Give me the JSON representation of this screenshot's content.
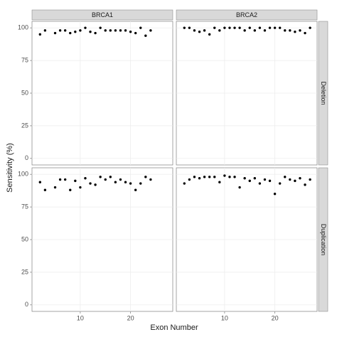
{
  "chart_data": {
    "type": "scatter",
    "xlabel": "Exon Number",
    "ylabel": "Sensitivity (%)",
    "columns": [
      "BRCA1",
      "BRCA2"
    ],
    "rows": [
      "Deletion",
      "Duplication"
    ],
    "xlim": [
      0.4,
      28.4
    ],
    "ylim": [
      -5,
      105
    ],
    "xticks": [
      10,
      20
    ],
    "yticks": [
      0,
      25,
      50,
      75,
      100
    ],
    "grid": true,
    "color": "#000000",
    "panels": [
      [
        {
          "x": [
            2,
            3,
            5,
            6,
            7,
            8,
            9,
            10,
            11,
            12,
            13,
            14,
            15,
            16,
            17,
            18,
            19,
            20,
            21,
            22,
            23,
            24
          ],
          "y": [
            95,
            98,
            96,
            98,
            98,
            96,
            97,
            98,
            100,
            97,
            96,
            100,
            98,
            98,
            98,
            98,
            98,
            97,
            96,
            100,
            94,
            98
          ]
        },
        {
          "x": [
            2,
            3,
            4,
            5,
            6,
            7,
            8,
            9,
            10,
            11,
            12,
            13,
            14,
            15,
            16,
            17,
            18,
            19,
            20,
            21,
            22,
            23,
            24,
            25,
            26,
            27
          ],
          "y": [
            100,
            100,
            98,
            97,
            98,
            95,
            100,
            98,
            100,
            100,
            100,
            100,
            98,
            100,
            98,
            100,
            98,
            100,
            100,
            100,
            98,
            98,
            97,
            98,
            96,
            100
          ]
        }
      ],
      [
        {
          "x": [
            2,
            3,
            5,
            6,
            7,
            8,
            9,
            10,
            11,
            12,
            13,
            14,
            15,
            16,
            17,
            18,
            19,
            20,
            21,
            22,
            23,
            24
          ],
          "y": [
            94,
            88,
            90,
            96,
            96,
            88,
            95,
            90,
            97,
            93,
            92,
            98,
            96,
            98,
            94,
            96,
            94,
            93,
            88,
            93,
            98,
            96
          ]
        },
        {
          "x": [
            2,
            3,
            4,
            5,
            6,
            7,
            8,
            9,
            10,
            11,
            12,
            13,
            14,
            15,
            16,
            17,
            18,
            19,
            20,
            21,
            22,
            23,
            24,
            25,
            26,
            27
          ],
          "y": [
            93,
            96,
            98,
            97,
            98,
            98,
            98,
            94,
            99,
            98,
            98,
            90,
            97,
            95,
            97,
            93,
            96,
            95,
            85,
            93,
            98,
            96,
            95,
            97,
            92,
            96
          ]
        }
      ]
    ]
  }
}
